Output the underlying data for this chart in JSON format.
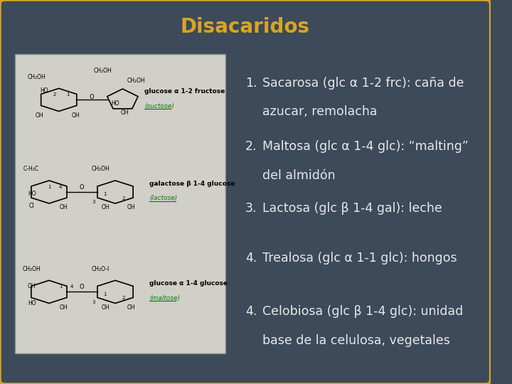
{
  "title": "Disacaridos",
  "title_color": "#DAA520",
  "title_fontsize": 20,
  "background_color": "#3C4A5A",
  "border_color": "#DAA520",
  "image_box_color": "#D0CFC8",
  "text_color": "#E8E8E8",
  "items": [
    {
      "num": "1.",
      "line1": "Sacarosa (glc α 1-2 frc): caña de",
      "line2": "azucar, remolacha"
    },
    {
      "num": "2.",
      "line1": "Maltosa (glc α 1-4 glc): “malting”",
      "line2": "del almidón"
    },
    {
      "num": "3.",
      "line1": "Lactosa (glc β 1-4 gal): leche",
      "line2": ""
    },
    {
      "num": "4.",
      "line1": "Trealosa (glc α 1-1 glc): hongos",
      "line2": ""
    },
    {
      "num": "4.",
      "line1": "Celobiosa (glc β 1-4 glc): unidad",
      "line2": "base de la celulosa, vegetales"
    }
  ],
  "item_fontsize": 12.5,
  "fig_width": 7.2,
  "fig_height": 5.4
}
